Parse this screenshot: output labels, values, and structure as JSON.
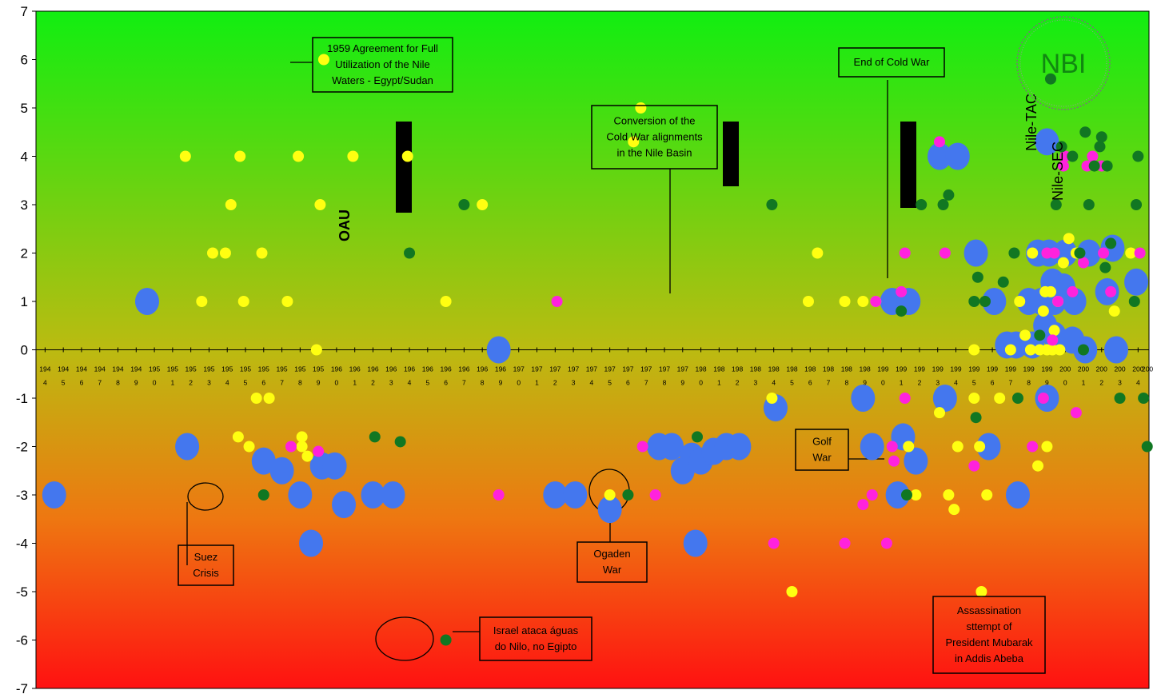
{
  "chart_data": {
    "type": "scatter",
    "title": "",
    "xlabel": "",
    "ylabel": "",
    "xlim": [
      1943.5,
      2004.6
    ],
    "ylim": [
      -7,
      7
    ],
    "yticks": [
      7,
      6,
      5,
      4,
      3,
      2,
      1,
      0,
      -1,
      -2,
      -3,
      -4,
      -5,
      -6,
      -7
    ],
    "xtick_years": [
      1944,
      1945,
      1946,
      1947,
      1948,
      1949,
      1950,
      1951,
      1952,
      1953,
      1954,
      1955,
      1956,
      1957,
      1958,
      1959,
      1960,
      1961,
      1962,
      1963,
      1964,
      1965,
      1966,
      1967,
      1968,
      1969,
      1970,
      1971,
      1972,
      1973,
      1974,
      1975,
      1976,
      1977,
      1978,
      1979,
      1980,
      1981,
      1982,
      1983,
      1984,
      1985,
      1986,
      1987,
      1988,
      1989,
      1990,
      1991,
      1992,
      1993,
      1994,
      1995,
      1996,
      1997,
      1998,
      1999,
      2000,
      2001,
      2002,
      2003,
      2004
    ],
    "xtick_top": [
      "194",
      "194",
      "194",
      "194",
      "194",
      "194",
      "195",
      "195",
      "195",
      "195",
      "195",
      "195",
      "195",
      "195",
      "195",
      "195",
      "196",
      "196",
      "196",
      "196",
      "196",
      "196",
      "196",
      "196",
      "196",
      "196",
      "197",
      "197",
      "197",
      "197",
      "197",
      "197",
      "197",
      "197",
      "197",
      "197",
      "198",
      "198",
      "198",
      "198",
      "198",
      "198",
      "198",
      "198",
      "198",
      "198",
      "199",
      "199",
      "199",
      "199",
      "199",
      "199",
      "199",
      "199",
      "199",
      "199",
      "200",
      "200",
      "200",
      "200",
      "200"
    ],
    "xtick_bottom": [
      "4",
      "5",
      "6",
      "7",
      "8",
      "9",
      "0",
      "1",
      "2",
      "3",
      "4",
      "5",
      "6",
      "7",
      "8",
      "9",
      "0",
      "1",
      "2",
      "3",
      "4",
      "5",
      "6",
      "7",
      "8",
      "9",
      "0",
      "1",
      "2",
      "3",
      "4",
      "5",
      "6",
      "7",
      "8",
      "9",
      "0",
      "1",
      "2",
      "3",
      "4",
      "5",
      "6",
      "7",
      "8",
      "9",
      "0",
      "1",
      "2",
      "3",
      "4",
      "5",
      "6",
      "7",
      "8",
      "9",
      "0",
      "1",
      "2",
      "3",
      "4"
    ],
    "colors": {
      "blue": "#4477ee",
      "yellow": "#ffff11",
      "magenta": "#ff22dd",
      "green": "#117722",
      "bg_top": "#11ee11",
      "bg_mid": "#bbbb11",
      "bg_low": "#ee7711",
      "bg_bottom": "#ff1111"
    },
    "series": [
      {
        "color": "blue",
        "size": "large",
        "points": [
          [
            1944.5,
            -3
          ],
          [
            1949.6,
            1
          ],
          [
            1951.8,
            -2
          ],
          [
            1956.0,
            -2.3
          ],
          [
            1957.0,
            -2.5
          ],
          [
            1958.0,
            -3
          ],
          [
            1958.6,
            -4
          ],
          [
            1959.2,
            -2.4
          ],
          [
            1959.9,
            -2.4
          ],
          [
            1960.4,
            -3.2
          ],
          [
            1962.0,
            -3
          ],
          [
            1963.1,
            -3
          ],
          [
            1968.9,
            0
          ],
          [
            1972.0,
            -3
          ],
          [
            1973.1,
            -3
          ],
          [
            1975.0,
            -3.3
          ],
          [
            1977.7,
            -2
          ],
          [
            1978.4,
            -2
          ],
          [
            1979.0,
            -2.5
          ],
          [
            1979.5,
            -2.2
          ],
          [
            1980.0,
            -2.3
          ],
          [
            1979.7,
            -4
          ],
          [
            1980.7,
            -2.1
          ],
          [
            1981.4,
            -2
          ],
          [
            1982.1,
            -2
          ],
          [
            1984.1,
            -1.2
          ],
          [
            1988.9,
            -1
          ],
          [
            1989.4,
            -2
          ],
          [
            1990.5,
            1
          ],
          [
            1991.4,
            1
          ],
          [
            1990.8,
            -3
          ],
          [
            1991.1,
            -1.8
          ],
          [
            1991.8,
            -2.3
          ],
          [
            1993.1,
            4
          ],
          [
            1994.1,
            4
          ],
          [
            1993.4,
            -1
          ],
          [
            1995.1,
            2
          ],
          [
            1996.1,
            1
          ],
          [
            1995.8,
            -2
          ],
          [
            1996.8,
            0.1
          ],
          [
            1997.3,
            0.1
          ],
          [
            1997.4,
            -3
          ],
          [
            1998.0,
            1
          ],
          [
            1998.2,
            0.1
          ],
          [
            1998.7,
            1
          ],
          [
            1998.9,
            0.5
          ],
          [
            1999.1,
            2
          ],
          [
            1999.3,
            1.4
          ],
          [
            1999.4,
            0.3
          ],
          [
            1998.5,
            2
          ],
          [
            1999.0,
            4.3
          ],
          [
            1999.4,
            1
          ],
          [
            1999.9,
            1.3
          ],
          [
            1999.0,
            -1
          ],
          [
            2000.0,
            2
          ],
          [
            2000.4,
            0.2
          ],
          [
            2000.5,
            1
          ],
          [
            2001.1,
            0
          ],
          [
            2001.3,
            2
          ],
          [
            2002.3,
            1.2
          ],
          [
            2002.6,
            2.1
          ],
          [
            2002.8,
            0
          ],
          [
            2003.9,
            1.4
          ]
        ]
      },
      {
        "color": "yellow",
        "size": "small",
        "points": [
          [
            1959.3,
            6
          ],
          [
            1951.7,
            4
          ],
          [
            1954.7,
            4
          ],
          [
            1957.9,
            4
          ],
          [
            1960.9,
            4
          ],
          [
            1963.9,
            4
          ],
          [
            1954.2,
            3
          ],
          [
            1959.1,
            3
          ],
          [
            1968.0,
            3
          ],
          [
            1953.2,
            2
          ],
          [
            1953.9,
            2
          ],
          [
            1955.9,
            2
          ],
          [
            1952.6,
            1
          ],
          [
            1954.9,
            1
          ],
          [
            1957.3,
            1
          ],
          [
            1966.0,
            1
          ],
          [
            1958.9,
            0
          ],
          [
            1955.6,
            -1
          ],
          [
            1956.3,
            -1
          ],
          [
            1954.6,
            -1.8
          ],
          [
            1955.2,
            -2
          ],
          [
            1958.1,
            -1.8
          ],
          [
            1958.4,
            -2.2
          ],
          [
            1958.1,
            -2
          ],
          [
            1975.0,
            -3
          ],
          [
            1976.3,
            4.3
          ],
          [
            1976.7,
            5
          ],
          [
            1985.9,
            1
          ],
          [
            1986.4,
            2
          ],
          [
            1987.9,
            1
          ],
          [
            1988.9,
            1
          ],
          [
            1989.6,
            1
          ],
          [
            1983.9,
            -1
          ],
          [
            1985.0,
            -5
          ],
          [
            1991.4,
            -2
          ],
          [
            1991.8,
            -3
          ],
          [
            1993.1,
            -1.3
          ],
          [
            1993.6,
            -3
          ],
          [
            1993.9,
            -3.3
          ],
          [
            1994.1,
            -2
          ],
          [
            1995.0,
            0
          ],
          [
            1995.0,
            -1
          ],
          [
            1995.3,
            -2
          ],
          [
            1995.4,
            -5
          ],
          [
            1995.7,
            -3
          ],
          [
            1996.4,
            -1
          ],
          [
            1997.0,
            0
          ],
          [
            1997.5,
            1
          ],
          [
            1997.8,
            0.3
          ],
          [
            1998.1,
            0
          ],
          [
            1998.2,
            2
          ],
          [
            1998.6,
            0
          ],
          [
            1998.5,
            -2.4
          ],
          [
            1999.0,
            0
          ],
          [
            1999.3,
            0
          ],
          [
            1999.2,
            1.2
          ],
          [
            1998.9,
            1.2
          ],
          [
            1998.8,
            0.8
          ],
          [
            1999.0,
            -2
          ],
          [
            1999.4,
            0.4
          ],
          [
            1999.6,
            1
          ],
          [
            1999.7,
            0
          ],
          [
            1999.9,
            1.8
          ],
          [
            2000.2,
            2.3
          ],
          [
            2000.6,
            2
          ],
          [
            2002.7,
            0.8
          ],
          [
            2003.6,
            2
          ]
        ]
      },
      {
        "color": "magenta",
        "size": "small",
        "points": [
          [
            1957.5,
            -2
          ],
          [
            1959.0,
            -2.1
          ],
          [
            1968.9,
            -3
          ],
          [
            1972.1,
            1
          ],
          [
            1976.8,
            -2
          ],
          [
            1977.5,
            -3
          ],
          [
            1984.0,
            -4
          ],
          [
            1987.9,
            -4
          ],
          [
            1988.9,
            -3.2
          ],
          [
            1989.4,
            -3
          ],
          [
            1990.2,
            -4
          ],
          [
            1989.6,
            1
          ],
          [
            1990.5,
            -2
          ],
          [
            1990.6,
            -2.3
          ],
          [
            1991.0,
            1.2
          ],
          [
            1991.2,
            -1
          ],
          [
            1991.2,
            2
          ],
          [
            1993.1,
            4.3
          ],
          [
            1993.4,
            2
          ],
          [
            1995.0,
            -2.4
          ],
          [
            1998.2,
            -2
          ],
          [
            1998.8,
            -1
          ],
          [
            1999.0,
            2
          ],
          [
            1999.4,
            2
          ],
          [
            1999.6,
            1
          ],
          [
            1999.3,
            0.2
          ],
          [
            2000.0,
            4
          ],
          [
            1999.9,
            3.8
          ],
          [
            2000.4,
            1.2
          ],
          [
            2000.6,
            -1.3
          ],
          [
            2001.0,
            1.8
          ],
          [
            2001.5,
            4
          ],
          [
            2001.2,
            3.8
          ],
          [
            2002.0,
            3.8
          ],
          [
            2002.1,
            2
          ],
          [
            2002.5,
            1.2
          ],
          [
            2004.1,
            2
          ]
        ]
      },
      {
        "color": "green",
        "size": "small",
        "points": [
          [
            1964.0,
            2
          ],
          [
            1956.0,
            -3
          ],
          [
            1962.1,
            -1.8
          ],
          [
            1963.5,
            -1.9
          ],
          [
            1966.0,
            -6
          ],
          [
            1967.0,
            3
          ],
          [
            1976.0,
            -3
          ],
          [
            1979.8,
            -1.8
          ],
          [
            1983.9,
            3
          ],
          [
            1991.0,
            0.8
          ],
          [
            1991.3,
            -3
          ],
          [
            1992.1,
            3
          ],
          [
            1993.3,
            3
          ],
          [
            1993.6,
            3.2
          ],
          [
            1995.0,
            1
          ],
          [
            1995.2,
            1.5
          ],
          [
            1995.6,
            1
          ],
          [
            1995.1,
            -1.4
          ],
          [
            1996.6,
            1.4
          ],
          [
            1997.2,
            2
          ],
          [
            1997.4,
            -1
          ],
          [
            1998.6,
            0.3
          ],
          [
            1999.2,
            5.6
          ],
          [
            1999.5,
            3
          ],
          [
            1999.8,
            4.2
          ],
          [
            2000.4,
            4
          ],
          [
            2000.8,
            2
          ],
          [
            2001.1,
            4.5
          ],
          [
            2001.3,
            3
          ],
          [
            2001.0,
            0
          ],
          [
            2001.6,
            3.8
          ],
          [
            2001.9,
            4.2
          ],
          [
            2002.0,
            4.4
          ],
          [
            2002.2,
            1.7
          ],
          [
            2002.3,
            3.8
          ],
          [
            2002.5,
            2.2
          ],
          [
            2003.0,
            -1
          ],
          [
            2003.8,
            1
          ],
          [
            2003.9,
            3
          ],
          [
            2004.0,
            4
          ],
          [
            2004.3,
            -1
          ],
          [
            2004.5,
            -2
          ]
        ]
      }
    ],
    "annotations": [
      {
        "lines": [
          "1959 Agreement for Full",
          "Utilization of the Nile",
          "Waters - Egypt/Sudan"
        ]
      },
      {
        "lines": [
          "Conversion of the",
          "Cold War alignments",
          "in the Nile Basin"
        ]
      },
      {
        "lines": [
          "End of Cold War"
        ]
      },
      {
        "lines": [
          "Suez",
          "Crisis"
        ]
      },
      {
        "lines": [
          "Ogaden",
          "War"
        ]
      },
      {
        "lines": [
          "Golf",
          "War"
        ]
      },
      {
        "lines": [
          "Israel ataca águas",
          "do Nilo, no Egipto"
        ]
      },
      {
        "lines": [
          "Assassination",
          "sttempt of",
          "President Mubarak",
          "in Addis Abeba"
        ]
      }
    ],
    "labels": {
      "oau": "OAU",
      "nile_tac": "Nile-TAC",
      "nile_sec": "Nile-SEC",
      "nbi": "NBI"
    },
    "grid": false,
    "legend": "none"
  }
}
